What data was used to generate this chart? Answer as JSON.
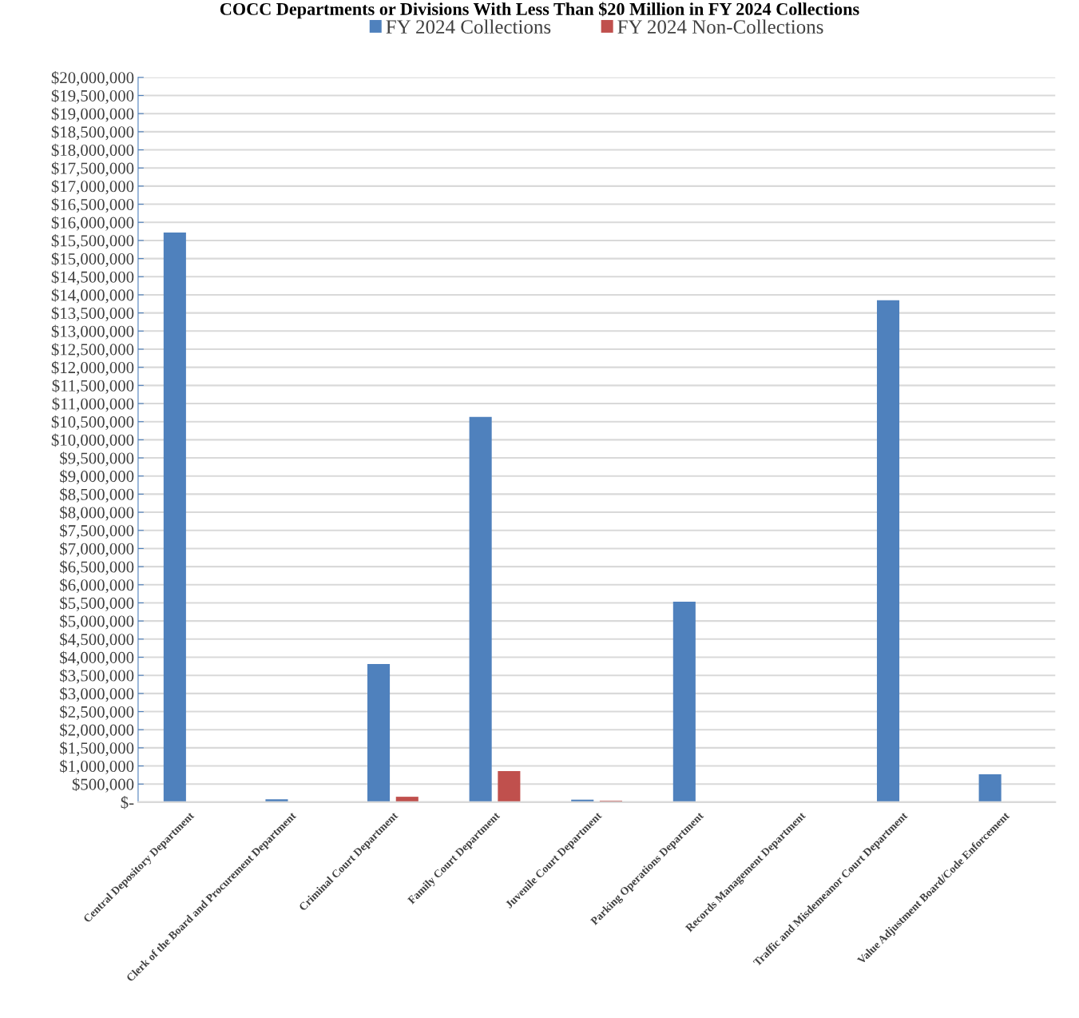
{
  "chart_data": {
    "type": "bar",
    "title": "COCC Departments or Divisions With Less Than $20 Million in FY 2024 Collections",
    "categories": [
      "Central Depository Department",
      "Clerk of the Board and Procurement Department",
      "Criminal Court Department",
      "Family Court Department",
      "Juvenile Court Department",
      "Parking Operations Department",
      "Records Management Department",
      "Traffic and Misdemeanor Court Department",
      "Value Adjustment Board/Code Enforcement"
    ],
    "series": [
      {
        "name": "FY 2024 Collections",
        "color": "#4f81bd",
        "values": [
          15720000,
          80000,
          3810000,
          10630000,
          70000,
          5530000,
          0,
          13850000,
          770000
        ]
      },
      {
        "name": "FY 2024 Non-Collections",
        "color": "#c0504d",
        "values": [
          0,
          0,
          150000,
          860000,
          40000,
          0,
          0,
          0,
          0
        ]
      }
    ],
    "ylim": [
      0,
      20000000
    ],
    "yticks": [
      {
        "value": 0,
        "label": "$-"
      },
      {
        "value": 500000,
        "label": "$500,000"
      },
      {
        "value": 1000000,
        "label": "$1,000,000"
      },
      {
        "value": 1500000,
        "label": "$1,500,000"
      },
      {
        "value": 2000000,
        "label": "$2,000,000"
      },
      {
        "value": 2500000,
        "label": "$2,500,000"
      },
      {
        "value": 3000000,
        "label": "$3,000,000"
      },
      {
        "value": 3500000,
        "label": "$3,500,000"
      },
      {
        "value": 4000000,
        "label": "$4,000,000"
      },
      {
        "value": 4500000,
        "label": "$4,500,000"
      },
      {
        "value": 5000000,
        "label": "$5,000,000"
      },
      {
        "value": 5500000,
        "label": "$5,500,000"
      },
      {
        "value": 6000000,
        "label": "$6,000,000"
      },
      {
        "value": 6500000,
        "label": "$6,500,000"
      },
      {
        "value": 7000000,
        "label": "$7,000,000"
      },
      {
        "value": 7500000,
        "label": "$7,500,000"
      },
      {
        "value": 8000000,
        "label": "$8,000,000"
      },
      {
        "value": 8500000,
        "label": "$8,500,000"
      },
      {
        "value": 9000000,
        "label": "$9,000,000"
      },
      {
        "value": 9500000,
        "label": "$9,500,000"
      },
      {
        "value": 10000000,
        "label": "$10,000,000"
      },
      {
        "value": 10500000,
        "label": "$10,500,000"
      },
      {
        "value": 11000000,
        "label": "$11,000,000"
      },
      {
        "value": 11500000,
        "label": "$11,500,000"
      },
      {
        "value": 12000000,
        "label": "$12,000,000"
      },
      {
        "value": 12500000,
        "label": "$12,500,000"
      },
      {
        "value": 13000000,
        "label": "$13,000,000"
      },
      {
        "value": 13500000,
        "label": "$13,500,000"
      },
      {
        "value": 14000000,
        "label": "$14,000,000"
      },
      {
        "value": 14500000,
        "label": "$14,500,000"
      },
      {
        "value": 15000000,
        "label": "$15,000,000"
      },
      {
        "value": 15500000,
        "label": "$15,500,000"
      },
      {
        "value": 16000000,
        "label": "$16,000,000"
      },
      {
        "value": 16500000,
        "label": "$16,500,000"
      },
      {
        "value": 17000000,
        "label": "$17,000,000"
      },
      {
        "value": 17500000,
        "label": "$17,500,000"
      },
      {
        "value": 18000000,
        "label": "$18,000,000"
      },
      {
        "value": 18500000,
        "label": "$18,500,000"
      },
      {
        "value": 19000000,
        "label": "$19,000,000"
      },
      {
        "value": 19500000,
        "label": "$19,500,000"
      },
      {
        "value": 20000000,
        "label": "$20,000,000"
      }
    ],
    "grid": "y",
    "legend": "top"
  }
}
